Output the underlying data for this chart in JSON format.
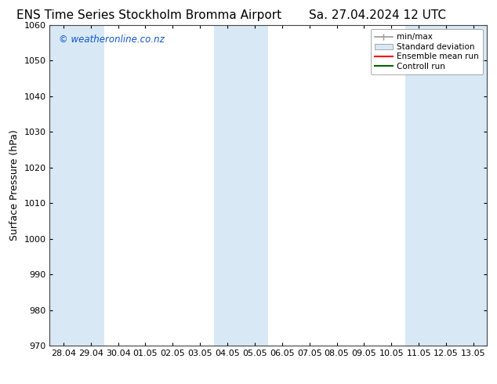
{
  "title_left": "ENS Time Series Stockholm Bromma Airport",
  "title_right": "Sa. 27.04.2024 12 UTC",
  "ylabel": "Surface Pressure (hPa)",
  "x_tick_labels": [
    "28.04",
    "29.04",
    "30.04",
    "01.05",
    "02.05",
    "03.05",
    "04.05",
    "05.05",
    "06.05",
    "07.05",
    "08.05",
    "09.05",
    "10.05",
    "11.05",
    "12.05",
    "13.05"
  ],
  "x_tick_positions": [
    0,
    1,
    2,
    3,
    4,
    5,
    6,
    7,
    8,
    9,
    10,
    11,
    12,
    13,
    14,
    15
  ],
  "ylim": [
    970,
    1060
  ],
  "yticks": [
    970,
    980,
    990,
    1000,
    1010,
    1020,
    1030,
    1040,
    1050,
    1060
  ],
  "shaded_columns": [
    0,
    1,
    6,
    7,
    13,
    14,
    15
  ],
  "shade_color": "#d8e8f5",
  "bg_color": "#ffffff",
  "watermark_text": "© weatheronline.co.nz",
  "watermark_color": "#1155cc",
  "legend_entries": [
    "min/max",
    "Standard deviation",
    "Ensemble mean run",
    "Controll run"
  ],
  "legend_colors_line": [
    "#999999",
    "#bbccdd",
    "#ff0000",
    "#006600"
  ],
  "title_fontsize": 11,
  "axis_fontsize": 9,
  "tick_fontsize": 8,
  "figure_bg": "#ffffff",
  "border_color": "#444444"
}
